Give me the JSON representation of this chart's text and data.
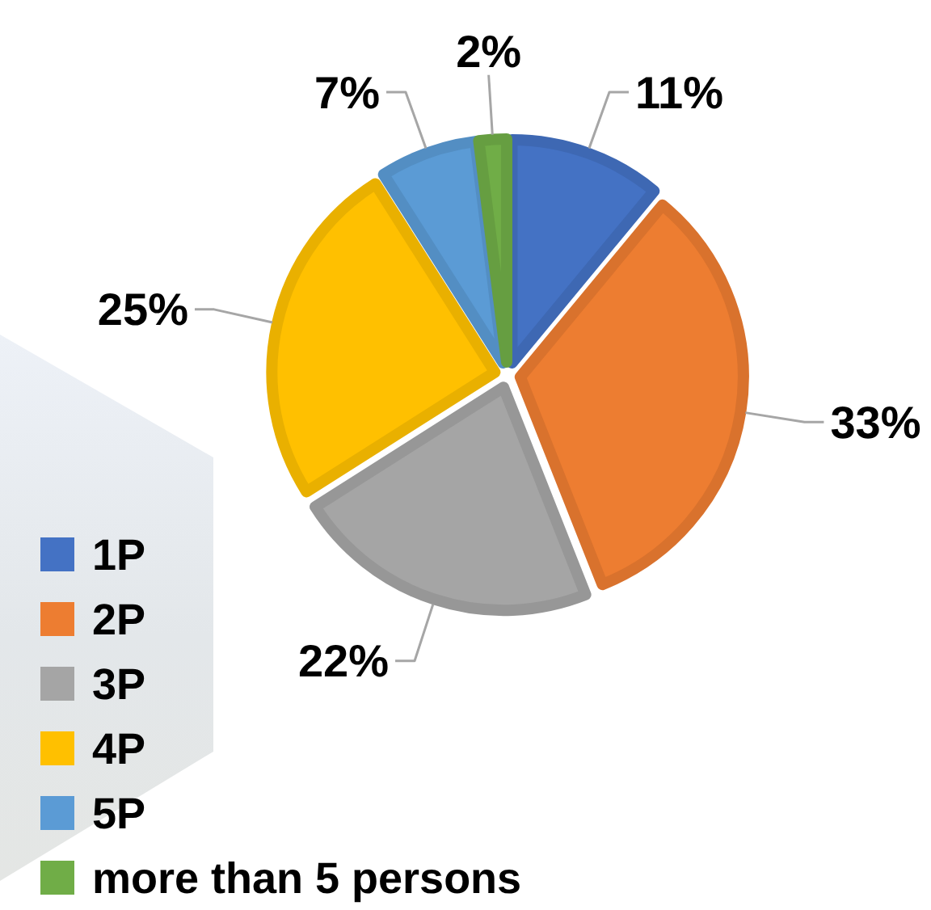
{
  "chart_data": {
    "type": "pie",
    "categories": [
      "1P",
      "2P",
      "3P",
      "4P",
      "5P",
      "more than 5 persons"
    ],
    "values": [
      11,
      33,
      22,
      25,
      7,
      2
    ],
    "value_labels": [
      "11%",
      "33%",
      "22%",
      "25%",
      "7%",
      "2%"
    ],
    "colors": [
      "#4472c4",
      "#ed7d31",
      "#a5a5a5",
      "#ffc000",
      "#5b9bd5",
      "#70ad47"
    ],
    "legend": "bottom left"
  }
}
